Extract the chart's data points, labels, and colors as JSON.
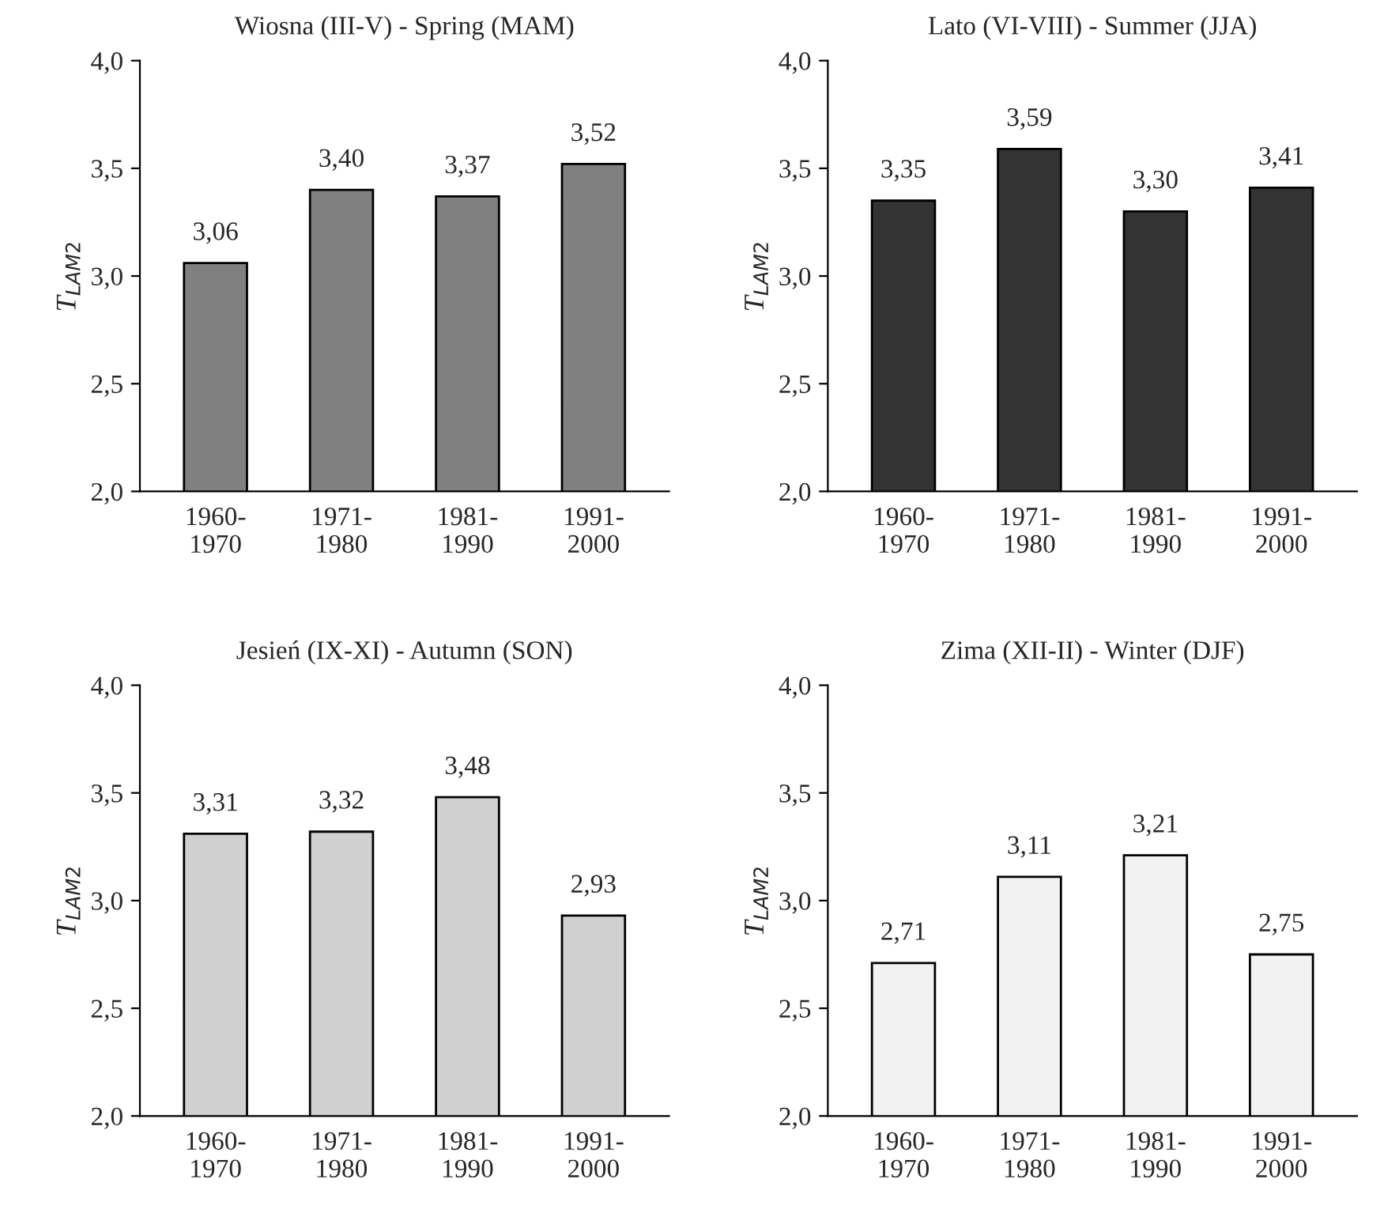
{
  "chart_data": [
    {
      "type": "bar",
      "title": "Wiosna (III-V) - Spring (MAM)",
      "ylabel": "T$_{LAM2}$",
      "categories": [
        "1960-\n1970",
        "1971-\n1980",
        "1981-\n1990",
        "1991-\n2000"
      ],
      "values": [
        3.06,
        3.4,
        3.37,
        3.52
      ],
      "value_labels": [
        "3,06",
        "3,40",
        "3,37",
        "3,52"
      ],
      "color": "#808080",
      "ylim": [
        2.0,
        4.0
      ],
      "yticks": [
        {
          "value": 2.0,
          "label": "2,0"
        },
        {
          "value": 2.5,
          "label": "2,5"
        },
        {
          "value": 3.0,
          "label": "3,0"
        },
        {
          "value": 3.5,
          "label": "3,5"
        },
        {
          "value": 4.0,
          "label": "4,0"
        }
      ],
      "grid": false,
      "legend": false
    },
    {
      "type": "bar",
      "title": "Lato (VI-VIII) - Summer (JJA)",
      "ylabel": "T$_{LAM2}$",
      "categories": [
        "1960-\n1970",
        "1971-\n1980",
        "1981-\n1990",
        "1991-\n2000"
      ],
      "values": [
        3.35,
        3.59,
        3.3,
        3.41
      ],
      "value_labels": [
        "3,35",
        "3,59",
        "3,30",
        "3,41"
      ],
      "color": "#333333",
      "ylim": [
        2.0,
        4.0
      ],
      "yticks": [
        {
          "value": 2.0,
          "label": "2,0"
        },
        {
          "value": 2.5,
          "label": "2,5"
        },
        {
          "value": 3.0,
          "label": "3,0"
        },
        {
          "value": 3.5,
          "label": "3,5"
        },
        {
          "value": 4.0,
          "label": "4,0"
        }
      ],
      "grid": false,
      "legend": false
    },
    {
      "type": "bar",
      "title": "Jesień (IX-XI) - Autumn (SON)",
      "ylabel": "T$_{LAM2}$",
      "categories": [
        "1960-\n1970",
        "1971-\n1980",
        "1981-\n1990",
        "1991-\n2000"
      ],
      "values": [
        3.31,
        3.32,
        3.48,
        2.93
      ],
      "value_labels": [
        "3,31",
        "3,32",
        "3,48",
        "2,93"
      ],
      "color": "#d0d0d0",
      "ylim": [
        2.0,
        4.0
      ],
      "yticks": [
        {
          "value": 2.0,
          "label": "2,0"
        },
        {
          "value": 2.5,
          "label": "2,5"
        },
        {
          "value": 3.0,
          "label": "3,0"
        },
        {
          "value": 3.5,
          "label": "3,5"
        },
        {
          "value": 4.0,
          "label": "4,0"
        }
      ],
      "grid": false,
      "legend": false
    },
    {
      "type": "bar",
      "title": "Zima (XII-II) - Winter (DJF)",
      "ylabel": "T$_{LAM2}$",
      "categories": [
        "1960-\n1970",
        "1971-\n1980",
        "1981-\n1990",
        "1991-\n2000"
      ],
      "values": [
        2.71,
        3.11,
        3.21,
        2.75
      ],
      "value_labels": [
        "2,71",
        "3,11",
        "3,21",
        "2,75"
      ],
      "color": "#f2f2f2",
      "ylim": [
        2.0,
        4.0
      ],
      "yticks": [
        {
          "value": 2.0,
          "label": "2,0"
        },
        {
          "value": 2.5,
          "label": "2,5"
        },
        {
          "value": 3.0,
          "label": "3,0"
        },
        {
          "value": 3.5,
          "label": "3,5"
        },
        {
          "value": 4.0,
          "label": "4,0"
        }
      ],
      "grid": false,
      "legend": false
    }
  ]
}
